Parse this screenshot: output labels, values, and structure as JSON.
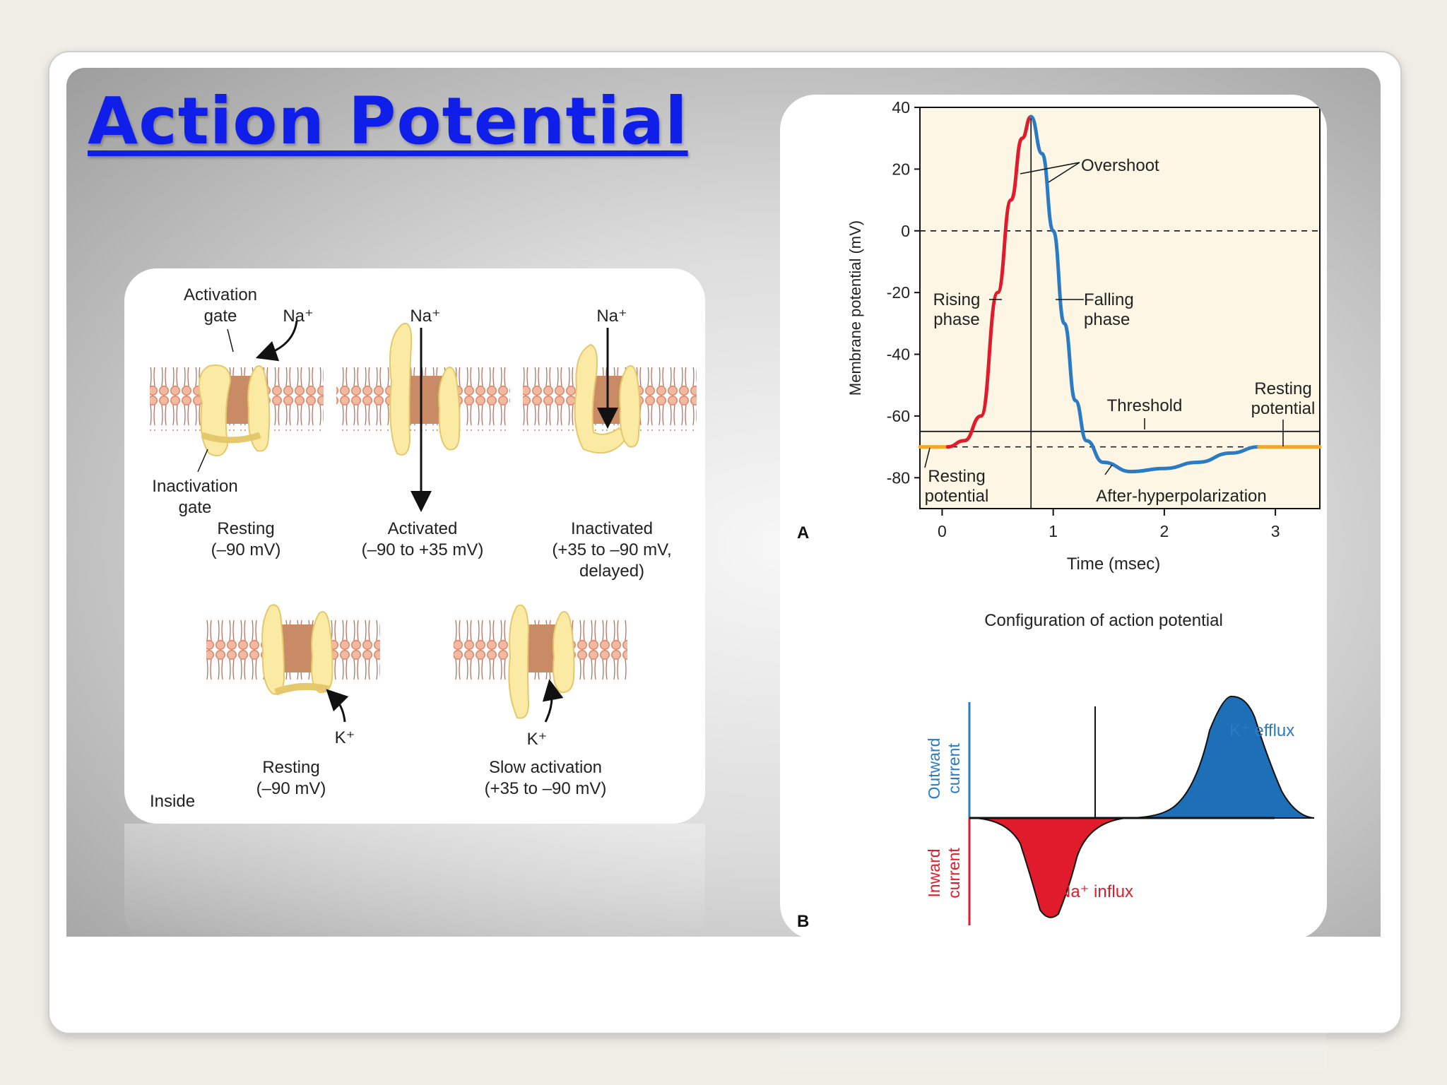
{
  "title": "Action Potential",
  "channel_diagram": {
    "labels": {
      "activation_gate": [
        "Activation",
        "gate"
      ],
      "inactivation_gate": [
        "Inactivation",
        "gate"
      ],
      "na": "Na⁺",
      "k": "K⁺",
      "inside": "Inside"
    },
    "states": [
      {
        "lines": [
          "Resting",
          "(–90 mV)"
        ]
      },
      {
        "lines": [
          "Activated",
          "(–90 to +35 mV)"
        ]
      },
      {
        "lines": [
          "Inactivated",
          "(+35 to –90 mV,",
          "delayed)"
        ]
      },
      {
        "lines": [
          "Resting",
          "(–90 mV)"
        ]
      },
      {
        "lines": [
          "Slow activation",
          "(+35 to –90 mV)"
        ]
      }
    ]
  },
  "chart_data": [
    {
      "type": "line",
      "panel_letter": "A",
      "title": "Configuration of action potential",
      "xlabel": "Time (msec)",
      "ylabel": "Membrane potential (mV)",
      "xlim": [
        -0.2,
        3.4
      ],
      "ylim": [
        -90,
        40
      ],
      "x_ticks": [
        0,
        1,
        2,
        3
      ],
      "y_ticks": [
        40,
        20,
        0,
        -20,
        -40,
        -60,
        -80
      ],
      "threshold_mv": -65,
      "resting_mv": -70,
      "series": [
        {
          "color": "#f4a62a",
          "x": [
            -0.2,
            0.05
          ],
          "y": [
            -70,
            -70
          ]
        },
        {
          "color": "#e01b2c",
          "x": [
            0.05,
            0.2,
            0.35,
            0.5,
            0.62,
            0.72,
            0.8
          ],
          "y": [
            -70,
            -68,
            -60,
            -20,
            10,
            30,
            37
          ]
        },
        {
          "color": "#2a7bc4",
          "x": [
            0.8,
            0.9,
            1.0,
            1.1,
            1.2,
            1.3,
            1.45,
            1.7,
            2.0,
            2.3,
            2.6,
            2.85
          ],
          "y": [
            37,
            25,
            0,
            -30,
            -55,
            -68,
            -75,
            -78,
            -77,
            -75,
            -72,
            -70
          ]
        },
        {
          "color": "#f4a62a",
          "x": [
            2.85,
            3.4
          ],
          "y": [
            -70,
            -70
          ]
        }
      ],
      "annotations": {
        "overshoot": "Overshoot",
        "rising": [
          "Rising",
          "phase"
        ],
        "falling": [
          "Falling",
          "phase"
        ],
        "threshold": "Threshold",
        "resting_potential_right": [
          "Resting",
          "potential"
        ],
        "resting_potential_left": [
          "Resting",
          "potential"
        ],
        "after_hyperpolarization": "After-hyperpolarization"
      }
    },
    {
      "type": "area",
      "panel_letter": "B",
      "ylabel_top": [
        "Outward",
        "current"
      ],
      "ylabel_bottom": [
        "Inward",
        "current"
      ],
      "series": [
        {
          "name": "Na⁺ influx",
          "color": "#e01b2c",
          "direction": "inward"
        },
        {
          "name": "K⁺ efflux",
          "color": "#1d6fb8",
          "direction": "outward"
        }
      ]
    }
  ]
}
